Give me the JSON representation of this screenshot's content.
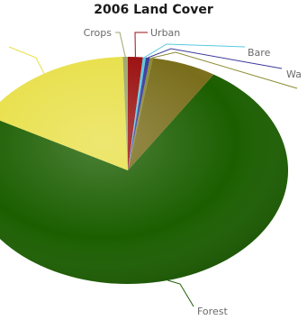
{
  "chart_data": {
    "type": "pie",
    "title": "2006 Land Cover",
    "slices": [
      {
        "label": "Urban",
        "value": 1.5,
        "color": "#9b1010"
      },
      {
        "label": "Bare",
        "value": 0.3,
        "color": "#59c9e0"
      },
      {
        "label": "Wa",
        "value": 0.4,
        "color": "#3b3b9a"
      },
      {
        "label": "",
        "value": 0.3,
        "color": "#8a8a33"
      },
      {
        "label": "",
        "value": 6.5,
        "color": "#7a6e1c"
      },
      {
        "label": "Forest",
        "value": 74.0,
        "color": "#1b5e00"
      },
      {
        "label": "",
        "value": 16.5,
        "color": "#e8e04a"
      },
      {
        "label": "Crops",
        "value": 0.5,
        "color": "#9ea86e"
      }
    ]
  }
}
